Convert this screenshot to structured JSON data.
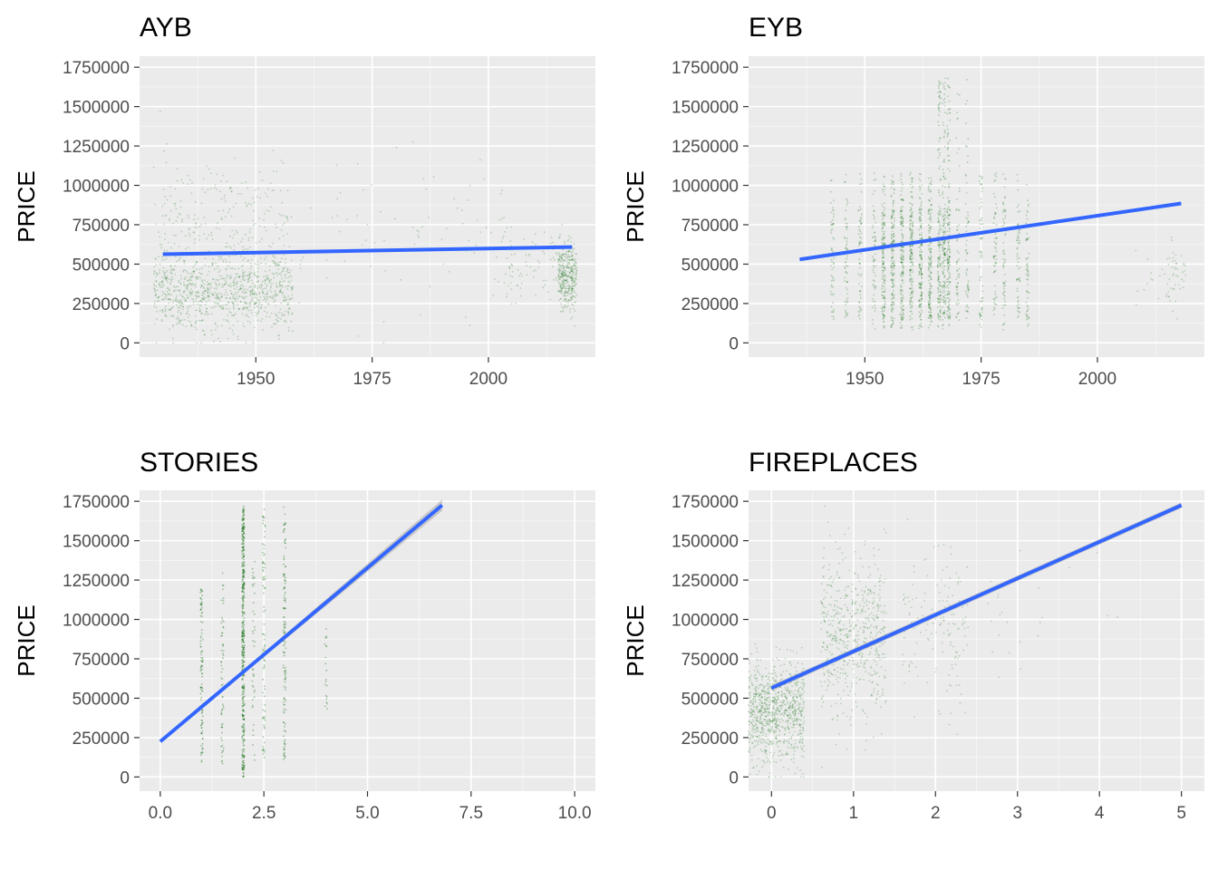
{
  "figure": {
    "panel_bg": "#ebebeb",
    "grid_major": "#ffffff",
    "point_color": "#006400",
    "line_color": "#3366ff",
    "band_color": "#999999"
  },
  "chart_data": [
    {
      "type": "scatter",
      "title": "AYB",
      "xlabel": "",
      "ylabel": "PRICE",
      "xlim": [
        1925,
        2023
      ],
      "ylim": [
        -90000,
        1820000
      ],
      "x_ticks": [
        1950,
        1975,
        2000
      ],
      "x_tick_labels": [
        "1950",
        "1975",
        "2000"
      ],
      "y_ticks": [
        0,
        250000,
        500000,
        750000,
        1000000,
        1250000,
        1500000,
        1750000
      ],
      "y_tick_labels": [
        "0",
        "250000",
        "500000",
        "750000",
        "1000000",
        "1250000",
        "1500000",
        "1750000"
      ],
      "grid": true,
      "points_distribution": {
        "clusters": [
          {
            "x_range": [
              1928,
              1958
            ],
            "y_center": 330000,
            "y_spread": 240000,
            "weight": 0.55
          },
          {
            "x_range": [
              1928,
              1958
            ],
            "y_center": 750000,
            "y_spread": 420000,
            "weight": 0.15
          },
          {
            "x_range": [
              1958,
              2005
            ],
            "y_center": 700000,
            "y_spread": 500000,
            "weight": 0.05
          },
          {
            "x_range": [
              2003,
              2017
            ],
            "y_center": 500000,
            "y_spread": 250000,
            "weight": 0.05
          },
          {
            "x_range": [
              2015,
              2019
            ],
            "y_center": 430000,
            "y_spread": 200000,
            "weight": 0.2
          }
        ]
      },
      "fit_line": {
        "x": [
          1930,
          2018
        ],
        "y": [
          563000,
          608000
        ],
        "band": 6000
      }
    },
    {
      "type": "scatter",
      "title": "EYB",
      "xlabel": "",
      "ylabel": "PRICE",
      "xlim": [
        1925,
        2023
      ],
      "ylim": [
        -90000,
        1820000
      ],
      "x_ticks": [
        1950,
        1975,
        2000
      ],
      "x_tick_labels": [
        "1950",
        "1975",
        "2000"
      ],
      "y_ticks": [
        0,
        250000,
        500000,
        750000,
        1000000,
        1250000,
        1500000,
        1750000
      ],
      "y_tick_labels": [
        "0",
        "250000",
        "500000",
        "750000",
        "1000000",
        "1250000",
        "1500000",
        "1750000"
      ],
      "grid": true,
      "points_distribution": {
        "columns": [
          1943,
          1946,
          1949,
          1952,
          1954,
          1956,
          1958,
          1960,
          1962,
          1964,
          1966,
          1967,
          1968,
          1970,
          1972,
          1975,
          1978,
          1980,
          1983,
          1985
        ],
        "clusters": [
          {
            "x_range": [
              2008,
              2017
            ],
            "y_center": 380000,
            "y_spread": 180000,
            "weight": 0.05
          },
          {
            "x_range": [
              2015,
              2019
            ],
            "y_center": 420000,
            "y_spread": 200000,
            "weight": 0.12
          }
        ]
      },
      "fit_line": {
        "x": [
          1936,
          2018
        ],
        "y": [
          530000,
          885000
        ],
        "band": 10000
      }
    },
    {
      "type": "scatter",
      "title": "STORIES",
      "xlabel": "",
      "ylabel": "PRICE",
      "xlim": [
        -0.5,
        10.5
      ],
      "ylim": [
        -90000,
        1820000
      ],
      "x_ticks": [
        0.0,
        2.5,
        5.0,
        7.5,
        10.0
      ],
      "x_tick_labels": [
        "0.0",
        "2.5",
        "5.0",
        "7.5",
        "10.0"
      ],
      "y_ticks": [
        0,
        250000,
        500000,
        750000,
        1000000,
        1250000,
        1500000,
        1750000
      ],
      "y_tick_labels": [
        "0",
        "250000",
        "500000",
        "750000",
        "1000000",
        "1250000",
        "1500000",
        "1750000"
      ],
      "grid": true,
      "points_distribution": {
        "columns": [
          {
            "x": 1.0,
            "y_range": [
              80000,
              1200000
            ],
            "density": 0.25
          },
          {
            "x": 1.5,
            "y_range": [
              80000,
              1300000
            ],
            "density": 0.15
          },
          {
            "x": 2.0,
            "y_range": [
              0,
              1720000
            ],
            "density": 1.0
          },
          {
            "x": 2.25,
            "y_range": [
              100000,
              1400000
            ],
            "density": 0.1
          },
          {
            "x": 2.5,
            "y_range": [
              100000,
              1700000
            ],
            "density": 0.2
          },
          {
            "x": 3.0,
            "y_range": [
              100000,
              1720000
            ],
            "density": 0.3
          },
          {
            "x": 4.0,
            "y_range": [
              400000,
              1000000
            ],
            "density": 0.05
          }
        ]
      },
      "fit_line": {
        "x": [
          0,
          6.8
        ],
        "y": [
          225000,
          1725000
        ],
        "band_max": 35000
      }
    },
    {
      "type": "scatter",
      "title": "FIREPLACES",
      "xlabel": "",
      "ylabel": "PRICE",
      "xlim": [
        -0.28,
        5.28
      ],
      "ylim": [
        -90000,
        1820000
      ],
      "x_ticks": [
        0,
        1,
        2,
        3,
        4,
        5
      ],
      "x_tick_labels": [
        "0",
        "1",
        "2",
        "3",
        "4",
        "5"
      ],
      "y_ticks": [
        0,
        250000,
        500000,
        750000,
        1000000,
        1250000,
        1500000,
        1750000
      ],
      "y_tick_labels": [
        "0",
        "250000",
        "500000",
        "750000",
        "1000000",
        "1250000",
        "1500000",
        "1750000"
      ],
      "grid": true,
      "points_distribution": {
        "jitter_groups": [
          {
            "x": 0,
            "y_center": 420000,
            "y_spread": 320000,
            "count": 3200
          },
          {
            "x": 1,
            "y_center": 900000,
            "y_spread": 520000,
            "count": 1800
          },
          {
            "x": 2,
            "y_center": 1000000,
            "y_spread": 500000,
            "count": 450
          },
          {
            "x": 3,
            "y_center": 1100000,
            "y_spread": 500000,
            "count": 60
          },
          {
            "x": 4,
            "y_center": 1100000,
            "y_spread": 500000,
            "count": 12
          }
        ]
      },
      "fit_line": {
        "x": [
          0,
          5
        ],
        "y": [
          565000,
          1725000
        ],
        "band": 18000
      }
    }
  ]
}
